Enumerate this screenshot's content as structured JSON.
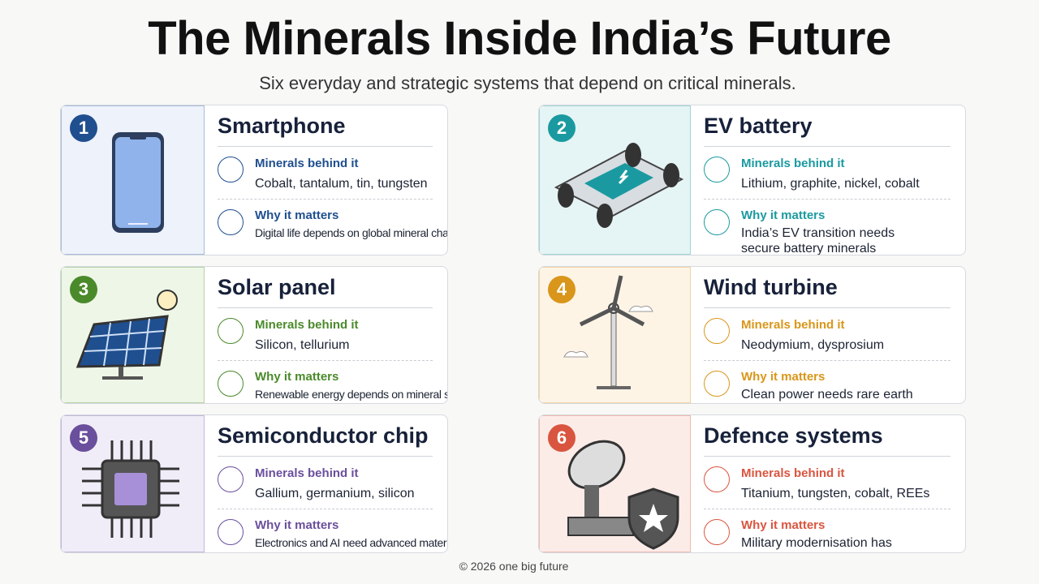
{
  "header": {
    "title": "The Minerals Inside India’s Future",
    "subtitle": "Six everyday and strategic systems that depend on critical minerals."
  },
  "cards": [
    {
      "number": "1",
      "title": "Smartphone",
      "minerals_label": "Minerals behind it",
      "minerals": "Cobalt, tantalum, tin, tungsten",
      "why_label": "Why it matters",
      "why": "Digital life depends on global mineral chains"
    },
    {
      "number": "2",
      "title": "EV battery",
      "minerals_label": "Minerals behind it",
      "minerals": "Lithium, graphite, nickel, cobalt",
      "why_label": "Why it matters",
      "why": "India’s EV transition needs secure battery minerals"
    },
    {
      "number": "3",
      "title": "Solar panel",
      "minerals_label": "Minerals behind it",
      "minerals": "Silicon, tellurium",
      "why_label": "Why it matters",
      "why": "Renewable energy depends on mineral supply"
    },
    {
      "number": "4",
      "title": "Wind turbine",
      "minerals_label": "Minerals behind it",
      "minerals": "Neodymium, dysprosium",
      "why_label": "Why it matters",
      "why": "Clean power needs rare earth magnets"
    },
    {
      "number": "5",
      "title": "Semiconductor chip",
      "minerals_label": "Minerals behind it",
      "minerals": "Gallium, germanium, silicon",
      "why_label": "Why it matters",
      "why": "Electronics and AI need advanced materials"
    },
    {
      "number": "6",
      "title": "Defence systems",
      "minerals_label": "Minerals behind it",
      "minerals": "Titanium, tungsten, cobalt, REEs",
      "why_label": "Why it matters",
      "why": "Military modernisation has mineral dependencies"
    }
  ],
  "footer": {
    "text": "© 2026 one big future"
  }
}
